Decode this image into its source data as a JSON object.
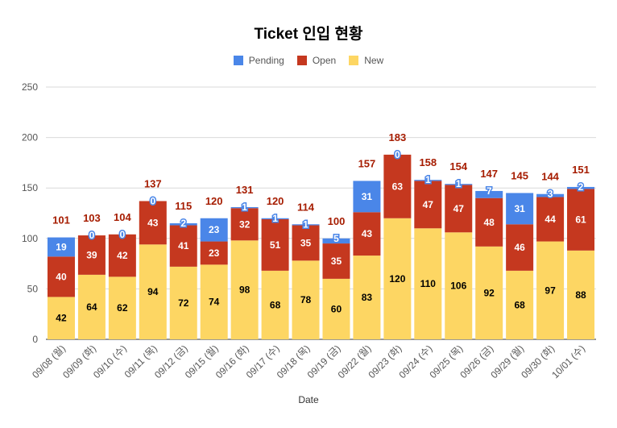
{
  "chart_data": {
    "type": "bar",
    "stacked": true,
    "title": "Ticket 인입 현황",
    "xlabel": "Date",
    "ylabel": "",
    "ylim": [
      0,
      250
    ],
    "yticks": [
      0,
      50,
      100,
      150,
      200,
      250
    ],
    "grid": true,
    "legend_position": "top",
    "categories": [
      "09/08 (월)",
      "09/09 (화)",
      "09/10 (수)",
      "09/11 (목)",
      "09/12 (금)",
      "09/15 (월)",
      "09/16 (화)",
      "09/17 (수)",
      "09/18 (목)",
      "09/19 (금)",
      "09/22 (월)",
      "09/23 (화)",
      "09/24 (수)",
      "09/25 (목)",
      "09/26 (금)",
      "09/29 (월)",
      "09/30 (화)",
      "10/01 (수)"
    ],
    "series": [
      {
        "name": "New",
        "color": "#FDD663",
        "values": [
          42,
          64,
          62,
          94,
          72,
          74,
          98,
          68,
          78,
          60,
          83,
          120,
          110,
          106,
          92,
          68,
          97,
          88
        ]
      },
      {
        "name": "Open",
        "color": "#C5381F",
        "values": [
          40,
          39,
          42,
          43,
          41,
          23,
          32,
          51,
          35,
          35,
          43,
          63,
          47,
          47,
          48,
          46,
          44,
          61
        ]
      },
      {
        "name": "Pending",
        "color": "#4A86E8",
        "values": [
          19,
          0,
          0,
          0,
          2,
          23,
          1,
          1,
          1,
          5,
          31,
          0,
          1,
          1,
          7,
          31,
          3,
          2
        ]
      }
    ],
    "totals": [
      101,
      103,
      104,
      137,
      115,
      120,
      131,
      120,
      114,
      100,
      157,
      183,
      158,
      154,
      147,
      145,
      144,
      151
    ],
    "total_label_color": "#A61C00"
  }
}
